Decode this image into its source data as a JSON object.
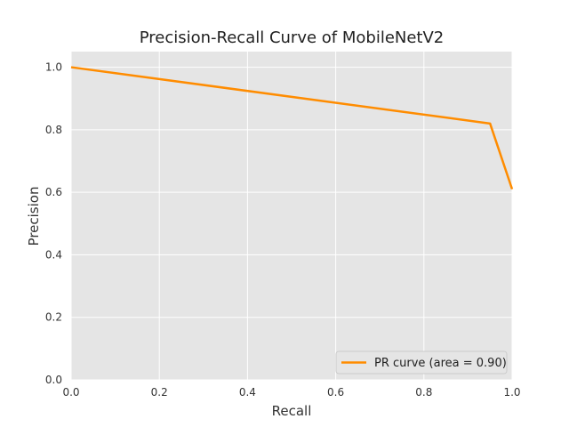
{
  "chart_data": {
    "type": "line",
    "title": "Precision-Recall Curve of MobileNetV2",
    "xlabel": "Recall",
    "ylabel": "Precision",
    "xlim": [
      0.0,
      1.0
    ],
    "ylim": [
      0.0,
      1.05
    ],
    "x_ticks": [
      "0.0",
      "0.2",
      "0.4",
      "0.6",
      "0.8",
      "1.0"
    ],
    "y_ticks": [
      "0.0",
      "0.2",
      "0.4",
      "0.6",
      "0.8",
      "1.0"
    ],
    "grid": true,
    "background_color": "#e5e5e5",
    "grid_color": "#ffffff",
    "legend_position": "lower-right",
    "series": [
      {
        "name": "PR curve (area = 0.90)",
        "color": "#ff8c00",
        "x": [
          0.0,
          0.95,
          1.0
        ],
        "y": [
          1.0,
          0.82,
          0.61
        ]
      }
    ]
  }
}
